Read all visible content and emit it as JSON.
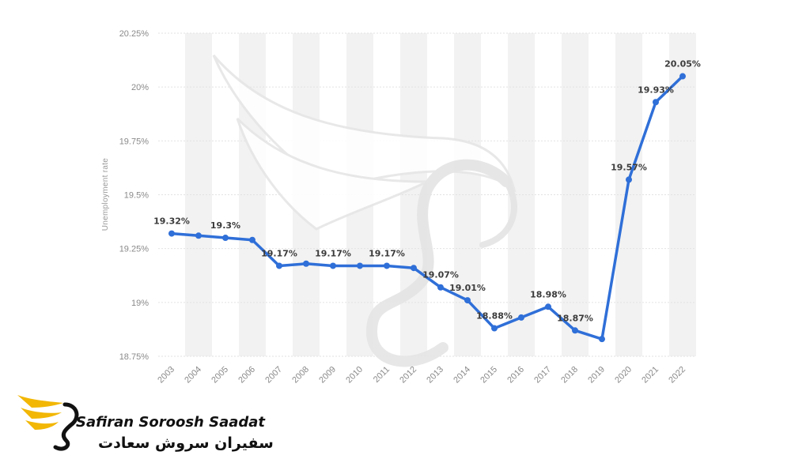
{
  "chart_data": {
    "type": "line",
    "title": "",
    "xlabel": "",
    "ylabel": "Unemployment rate",
    "categories": [
      "2003",
      "2004",
      "2005",
      "2006",
      "2007",
      "2008",
      "2009",
      "2010",
      "2011",
      "2012",
      "2013",
      "2014",
      "2015",
      "2016",
      "2017",
      "2018",
      "2019",
      "2020",
      "2021",
      "2022"
    ],
    "series": [
      {
        "values": [
          19.32,
          19.31,
          19.3,
          19.29,
          19.17,
          19.18,
          19.17,
          19.17,
          19.17,
          19.16,
          19.07,
          19.01,
          18.88,
          18.93,
          18.98,
          18.87,
          18.83,
          19.57,
          19.93,
          20.05
        ]
      }
    ],
    "data_labels": [
      {
        "index": 0,
        "text": "19.32%"
      },
      {
        "index": 2,
        "text": "19.3%"
      },
      {
        "index": 4,
        "text": "19.17%"
      },
      {
        "index": 6,
        "text": "19.17%"
      },
      {
        "index": 8,
        "text": "19.17%"
      },
      {
        "index": 10,
        "text": "19.07%"
      },
      {
        "index": 11,
        "text": "19.01%"
      },
      {
        "index": 12,
        "text": "18.88%"
      },
      {
        "index": 14,
        "text": "18.98%"
      },
      {
        "index": 15,
        "text": "18.87%"
      },
      {
        "index": 17,
        "text": "19.57%"
      },
      {
        "index": 18,
        "text": "19.93%"
      },
      {
        "index": 19,
        "text": "20.05%"
      }
    ],
    "ylim": [
      18.75,
      20.25
    ],
    "yticks": [
      20.25,
      20,
      19.75,
      19.5,
      19.25,
      19,
      18.75
    ],
    "ytick_labels": [
      "20.25%",
      "20%",
      "19.75%",
      "19.5%",
      "19.25%",
      "19%",
      "18.75%"
    ],
    "grid": true,
    "legend": "none",
    "colors": {
      "line": "#2f6fd8",
      "grid": "#e2e2e2",
      "band": "#f2f2f2",
      "label": "#3b3b3b"
    }
  },
  "branding": {
    "name_latin": "Safiran Soroosh Saadat",
    "name_arabic": "سفیران سروش سعادت",
    "colors": {
      "wing": "#f2b705",
      "text": "#111111"
    }
  }
}
